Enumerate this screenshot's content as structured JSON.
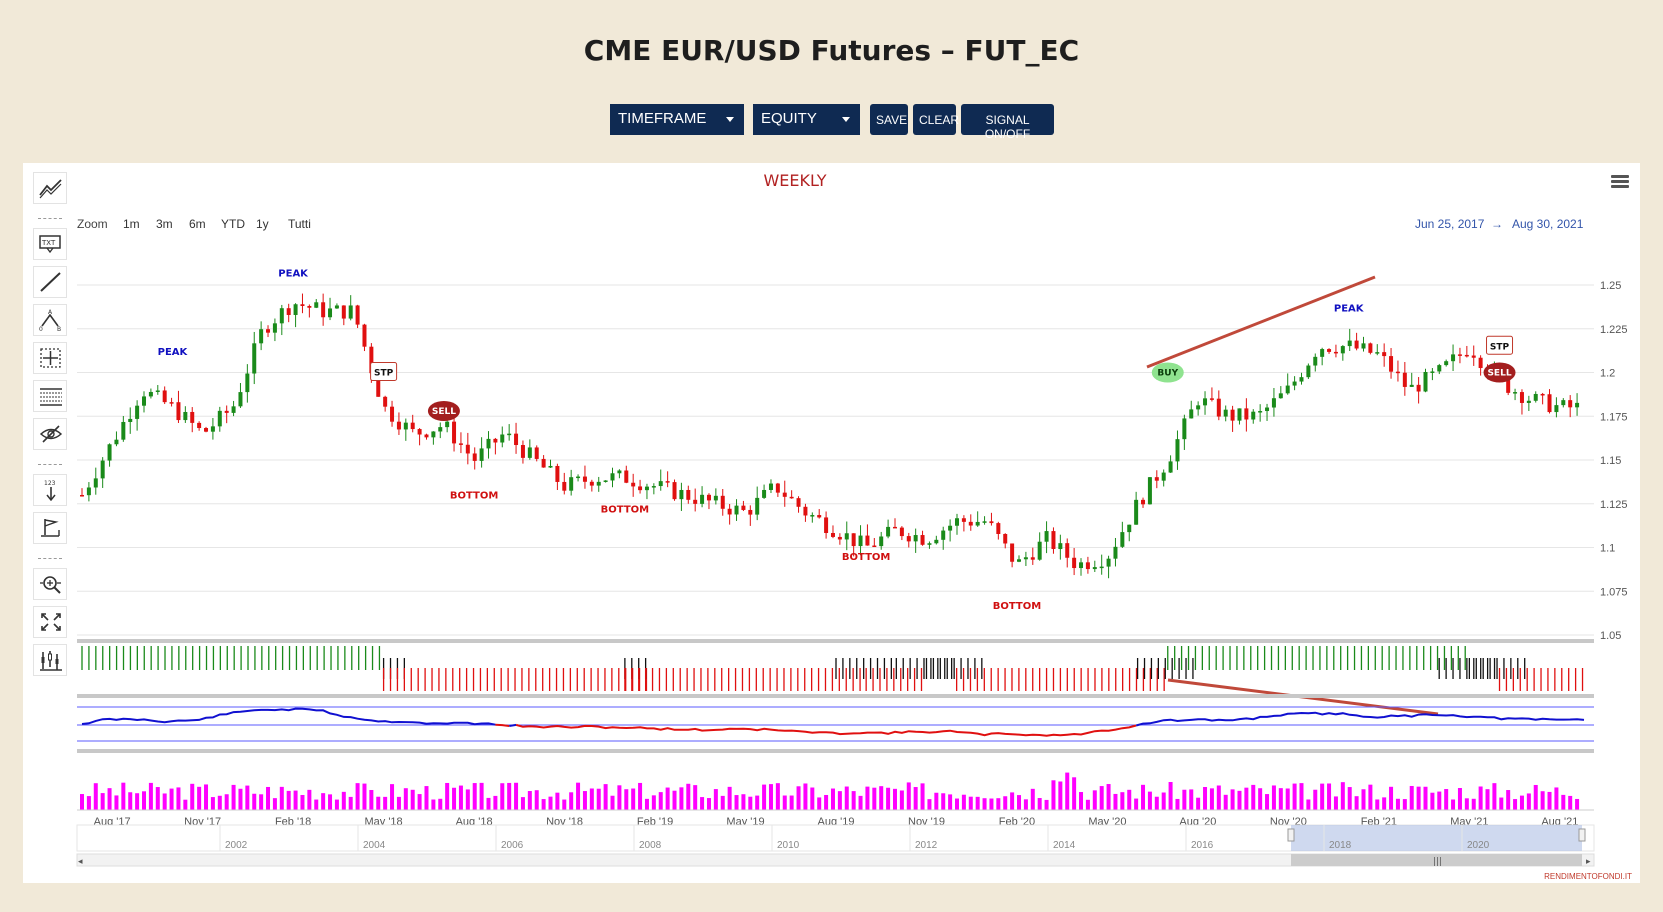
{
  "page": {
    "title": "CME EUR/USD Futures – FUT_EC"
  },
  "toolbar": {
    "timeframe_label": "TIMEFRAME",
    "equity_label": "EQUITY",
    "save_label": "SAVE",
    "clear_label": "CLEAR",
    "signal_label": "SIGNAL ON/OFF"
  },
  "chart": {
    "subtitle": "WEEKLY",
    "zoom_label": "Zoom",
    "zoom_buttons": [
      "1m",
      "3m",
      "6m",
      "YTD",
      "1y",
      "Tutti"
    ],
    "range_from": "Jun 25, 2017",
    "range_arrow": "→",
    "range_to": "Aug 30, 2021",
    "credit": "RENDIMENTOFONDI.IT"
  },
  "colors": {
    "background": "#f1e9d8",
    "button_bg": "#0f2a52",
    "candle_up": "#1a8a1a",
    "candle_down": "#e01010",
    "peak_label": "#1010c0",
    "bottom_label": "#d01010",
    "volume": "#ff00ff",
    "trendline": "#c0493a",
    "oscillator_high": "#1010d0",
    "oscillator_low": "#e01010",
    "title_red": "#b22222"
  },
  "icons": [
    "trend-lines-icon",
    "text-annotation-icon",
    "line-icon",
    "fibonacci-icon",
    "crosshair-icon",
    "horizontal-lines-icon",
    "visibility-toggle-icon",
    "vertical-counter-icon",
    "flag-icon",
    "zoom-icon",
    "fullscreen-icon",
    "indicators-icon",
    "hamburger-menu-icon"
  ],
  "chart_data": {
    "type": "candlestick",
    "title": "",
    "subtitle": "WEEKLY",
    "timeframe": "weekly",
    "y_axis": {
      "ticks": [
        "1.25",
        "1.225",
        "1.2",
        "1.175",
        "1.15",
        "1.125",
        "1.1",
        "1.075",
        "1.05"
      ],
      "ylim": [
        1.05,
        1.25
      ],
      "position": "right"
    },
    "x_axis_ticks": [
      "Aug '17",
      "Nov '17",
      "Feb '18",
      "May '18",
      "Aug '18",
      "Nov '18",
      "Feb '19",
      "May '19",
      "Aug '19",
      "Nov '19",
      "Feb '20",
      "May '20",
      "Aug '20",
      "Nov '20",
      "Feb '21",
      "May '21",
      "Aug '21"
    ],
    "navigator_ticks": [
      "2002",
      "2004",
      "2006",
      "2008",
      "2010",
      "2012",
      "2014",
      "2016",
      "2018",
      "2020"
    ],
    "close_path": [
      {
        "x": "Jul '17",
        "y": 1.13
      },
      {
        "x": "Sep '17",
        "y": 1.19
      },
      {
        "x": "Oct '17",
        "y": 1.18
      },
      {
        "x": "Nov '17",
        "y": 1.165
      },
      {
        "x": "Dec '17",
        "y": 1.18
      },
      {
        "x": "Jan '18",
        "y": 1.225
      },
      {
        "x": "Feb '18",
        "y": 1.24
      },
      {
        "x": "Mar '18",
        "y": 1.235
      },
      {
        "x": "Apr '18",
        "y": 1.235
      },
      {
        "x": "May '18",
        "y": 1.18
      },
      {
        "x": "Jun '18",
        "y": 1.165
      },
      {
        "x": "Jul '18",
        "y": 1.17
      },
      {
        "x": "Aug '18",
        "y": 1.15
      },
      {
        "x": "Sep '18",
        "y": 1.165
      },
      {
        "x": "Oct '18",
        "y": 1.15
      },
      {
        "x": "Nov '18",
        "y": 1.135
      },
      {
        "x": "Dec '18",
        "y": 1.14
      },
      {
        "x": "Jan '19",
        "y": 1.14
      },
      {
        "x": "Feb '19",
        "y": 1.135
      },
      {
        "x": "Mar '19",
        "y": 1.13
      },
      {
        "x": "Apr '19",
        "y": 1.125
      },
      {
        "x": "May '19",
        "y": 1.12
      },
      {
        "x": "Jun '19",
        "y": 1.135
      },
      {
        "x": "Jul '19",
        "y": 1.12
      },
      {
        "x": "Aug '19",
        "y": 1.11
      },
      {
        "x": "Sep '19",
        "y": 1.1
      },
      {
        "x": "Oct '19",
        "y": 1.11
      },
      {
        "x": "Nov '19",
        "y": 1.105
      },
      {
        "x": "Dec '19",
        "y": 1.115
      },
      {
        "x": "Jan '20",
        "y": 1.115
      },
      {
        "x": "Feb '20",
        "y": 1.09
      },
      {
        "x": "Mar '20",
        "y": 1.105
      },
      {
        "x": "Apr '20",
        "y": 1.09
      },
      {
        "x": "May '20",
        "y": 1.095
      },
      {
        "x": "Jun '20",
        "y": 1.125
      },
      {
        "x": "Jul '20",
        "y": 1.15
      },
      {
        "x": "Aug '20",
        "y": 1.185
      },
      {
        "x": "Sep '20",
        "y": 1.175
      },
      {
        "x": "Oct '20",
        "y": 1.175
      },
      {
        "x": "Nov '20",
        "y": 1.19
      },
      {
        "x": "Dec '20",
        "y": 1.215
      },
      {
        "x": "Jan '21",
        "y": 1.215
      },
      {
        "x": "Feb '21",
        "y": 1.21
      },
      {
        "x": "Mar '21",
        "y": 1.19
      },
      {
        "x": "Apr '21",
        "y": 1.2
      },
      {
        "x": "May '21",
        "y": 1.215
      },
      {
        "x": "Jun '21",
        "y": 1.195
      },
      {
        "x": "Jul '21",
        "y": 1.185
      },
      {
        "x": "Aug '21",
        "y": 1.18
      }
    ],
    "annotations": [
      {
        "text": "PEAK",
        "x": "Oct '17",
        "y": 1.21,
        "kind": "peak"
      },
      {
        "text": "PEAK",
        "x": "Feb '18",
        "y": 1.255,
        "kind": "peak"
      },
      {
        "text": "STP",
        "x": "May '18",
        "y": 1.2,
        "kind": "stop"
      },
      {
        "text": "SELL",
        "x": "Jul '18",
        "y": 1.178,
        "kind": "sell"
      },
      {
        "text": "BOTTOM",
        "x": "Aug '18",
        "y": 1.128,
        "kind": "bottom"
      },
      {
        "text": "BOTTOM",
        "x": "Jan '19",
        "y": 1.12,
        "kind": "bottom"
      },
      {
        "text": "BOTTOM",
        "x": "Sep '19",
        "y": 1.093,
        "kind": "bottom"
      },
      {
        "text": "BOTTOM",
        "x": "Feb '20",
        "y": 1.065,
        "kind": "bottom"
      },
      {
        "text": "BUY",
        "x": "Jul '20",
        "y": 1.2,
        "kind": "buy"
      },
      {
        "text": "PEAK",
        "x": "Jan '21",
        "y": 1.235,
        "kind": "peak"
      },
      {
        "text": "STP",
        "x": "Jun '21",
        "y": 1.215,
        "kind": "stop"
      },
      {
        "text": "SELL",
        "x": "Jun '21",
        "y": 1.2,
        "kind": "sell"
      }
    ],
    "signal_bands": [
      {
        "from": "Jul '17",
        "to": "Apr '18",
        "state": "green"
      },
      {
        "from": "May '18",
        "to": "May '18",
        "state": "black"
      },
      {
        "from": "May '18",
        "to": "Jan '19",
        "state": "red"
      },
      {
        "from": "Jan '19",
        "to": "Jan '19",
        "state": "black"
      },
      {
        "from": "Jan '19",
        "to": "Aug '19",
        "state": "red"
      },
      {
        "from": "Aug '19",
        "to": "Sep '19",
        "state": "black"
      },
      {
        "from": "Sep '19",
        "to": "Oct '19",
        "state": "red"
      },
      {
        "from": "Oct '19",
        "to": "Nov '19",
        "state": "black"
      },
      {
        "from": "Nov '19",
        "to": "Dec '19",
        "state": "black"
      },
      {
        "from": "Dec '19",
        "to": "Jun '20",
        "state": "red"
      },
      {
        "from": "Jun '20",
        "to": "Jul '20",
        "state": "black"
      },
      {
        "from": "Jul '20",
        "to": "Apr '21",
        "state": "green"
      },
      {
        "from": "Apr '21",
        "to": "May '21",
        "state": "black"
      },
      {
        "from": "May '21",
        "to": "Jun '21",
        "state": "black"
      },
      {
        "from": "Jun '21",
        "to": "Aug '21",
        "state": "red"
      }
    ],
    "grid": true,
    "legend": "none"
  }
}
